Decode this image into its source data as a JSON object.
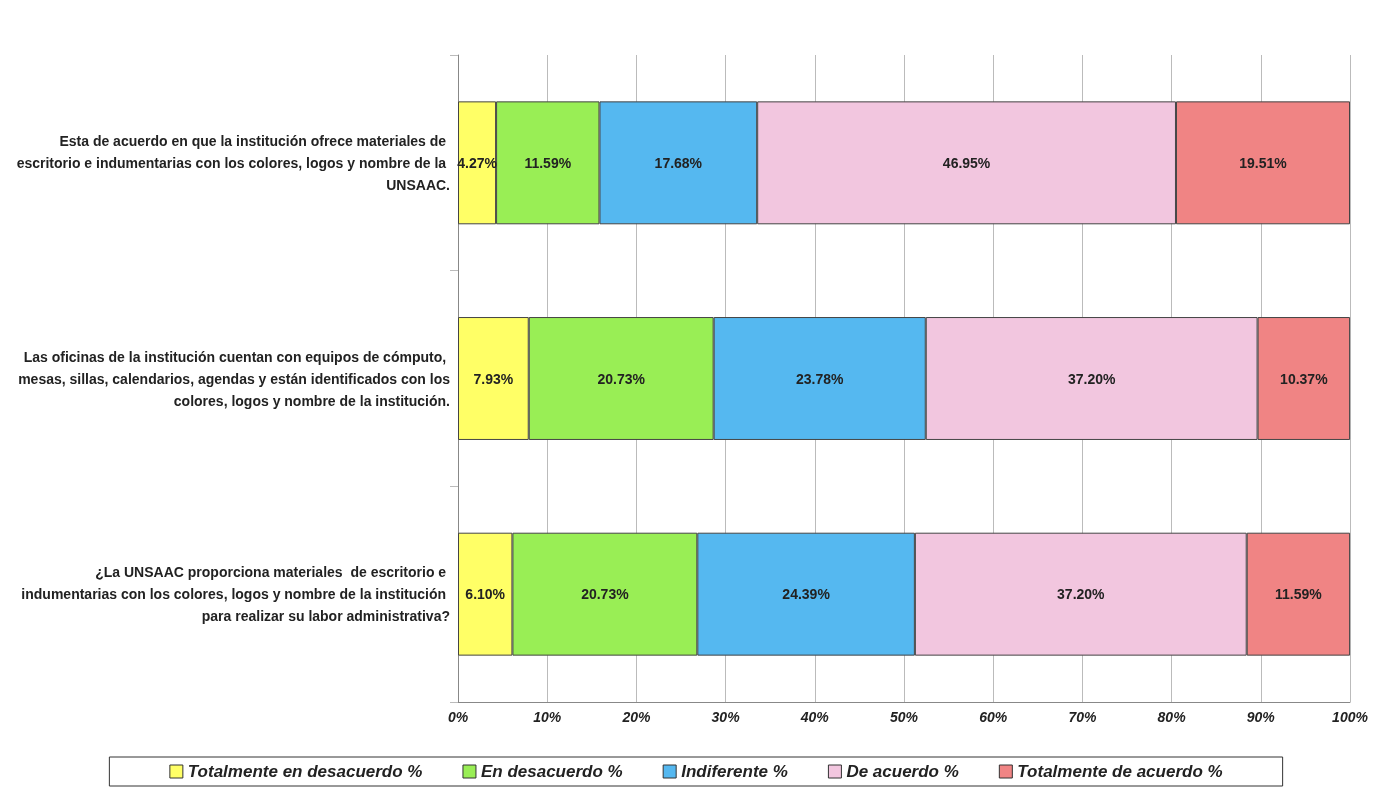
{
  "chart_data": {
    "type": "bar",
    "orientation": "horizontal",
    "stacked": true,
    "categories": [
      "Esta de acuerdo en que la institución ofrece materiales de escritorio e indumentarias con los colores, logos y nombre de la UNSAAC.",
      "Las oficinas de la institución cuentan con equipos de cómputo, mesas, sillas, calendarios, agendas y están identificados con los colores, logos y nombre de la institución.",
      "¿La UNSAAC proporciona materiales  de escritorio e indumentarias con los colores, logos y nombre de la institución para realizar su labor administrativa?"
    ],
    "series": [
      {
        "name": "Totalmente en desacuerdo %",
        "color": "#ffff66",
        "values": [
          4.27,
          7.93,
          6.1
        ],
        "value_labels": [
          "4.27%",
          "7.93%",
          "6.10%"
        ]
      },
      {
        "name": "En desacuerdo %",
        "color": "#99ee55",
        "values": [
          11.59,
          20.73,
          20.73
        ],
        "value_labels": [
          "11.59%",
          "20.73%",
          "20.73%"
        ]
      },
      {
        "name": "Indiferente %",
        "color": "#55b8f0",
        "values": [
          17.68,
          23.78,
          24.39
        ],
        "value_labels": [
          "17.68%",
          "23.78%",
          "24.39%"
        ]
      },
      {
        "name": "De acuerdo %",
        "color": "#f2c6df",
        "values": [
          46.95,
          37.2,
          37.2
        ],
        "value_labels": [
          "46.95%",
          "37.20%",
          "37.20%"
        ]
      },
      {
        "name": "Totalmente de acuerdo %",
        "color": "#f08484",
        "values": [
          19.51,
          10.37,
          11.59
        ],
        "value_labels": [
          "19.51%",
          "10.37%",
          "11.59%"
        ]
      }
    ],
    "xlim": [
      0,
      100
    ],
    "xticks": [
      {
        "value": 0,
        "label": "0%"
      },
      {
        "value": 10,
        "label": "10%"
      },
      {
        "value": 20,
        "label": "20%"
      },
      {
        "value": 30,
        "label": "30%"
      },
      {
        "value": 40,
        "label": "40%"
      },
      {
        "value": 50,
        "label": "50%"
      },
      {
        "value": 60,
        "label": "60%"
      },
      {
        "value": 70,
        "label": "70%"
      },
      {
        "value": 80,
        "label": "80%"
      },
      {
        "value": 90,
        "label": "90%"
      },
      {
        "value": 100,
        "label": "100%"
      }
    ],
    "grid": "x",
    "legend": "bottom"
  }
}
